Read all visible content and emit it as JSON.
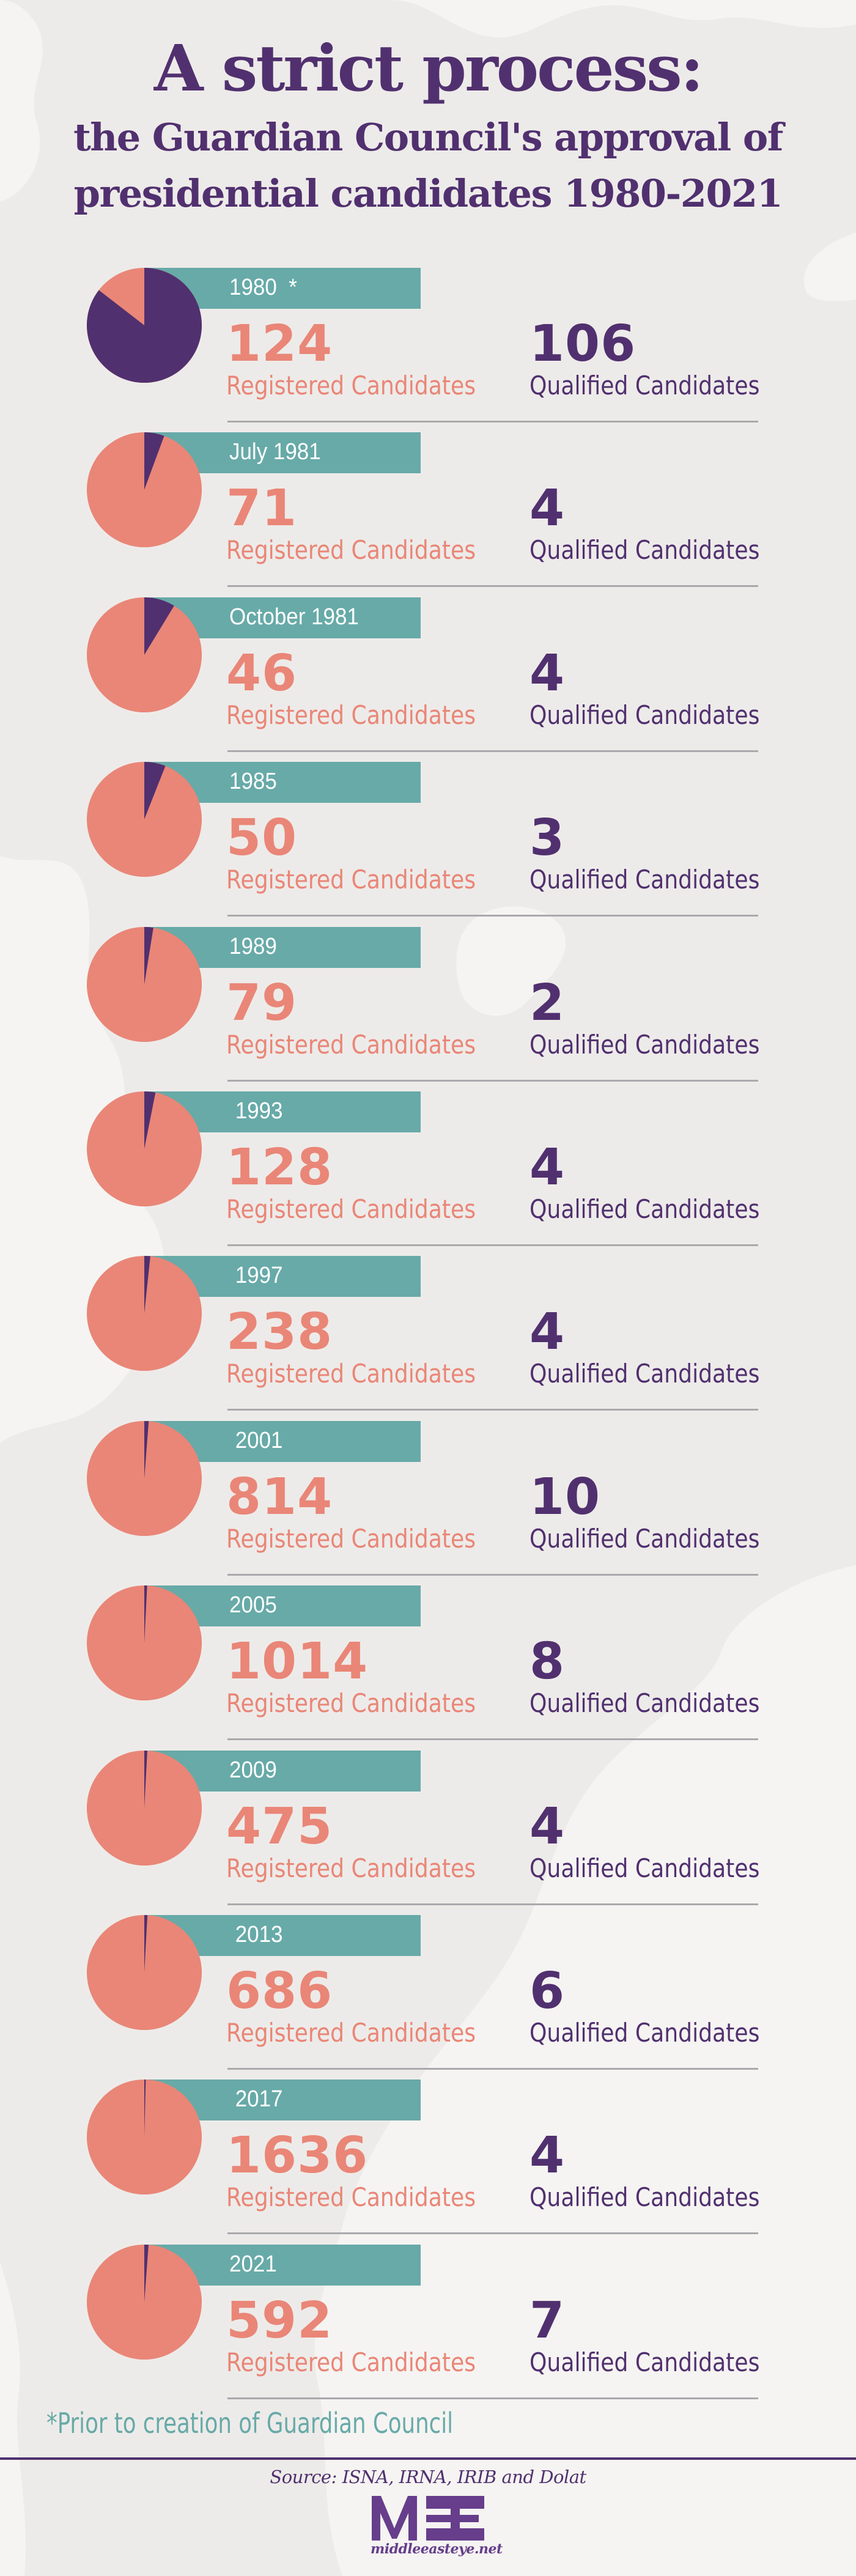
{
  "header": {
    "title": "A strict process:",
    "subtitle_line1": "the Guardian Council's approval of",
    "subtitle_line2": "presidential candidates 1980-2021"
  },
  "labels": {
    "registered": "Registered Candidates",
    "qualified": "Qualified Candidates"
  },
  "colors": {
    "background": "#edebe9",
    "registered": "#e98677",
    "qualified": "#51306f",
    "year_bar": "#67aaa8",
    "divider": "#a9a9ad"
  },
  "rows": [
    {
      "year": "1980  *",
      "registered": "124",
      "qualified": "106"
    },
    {
      "year": "July 1981",
      "registered": "71",
      "qualified": "4"
    },
    {
      "year": "October 1981",
      "registered": "46",
      "qualified": "4"
    },
    {
      "year": "1985",
      "registered": "50",
      "qualified": "3"
    },
    {
      "year": "1989",
      "registered": "79",
      "qualified": "2"
    },
    {
      "year": " 1993",
      "registered": "128",
      "qualified": "4"
    },
    {
      "year": " 1997",
      "registered": "238",
      "qualified": "4"
    },
    {
      "year": " 2001",
      "registered": "814",
      "qualified": "10"
    },
    {
      "year": "2005",
      "registered": "1014",
      "qualified": "8"
    },
    {
      "year": "2009",
      "registered": "475",
      "qualified": "4"
    },
    {
      "year": " 2013",
      "registered": "686",
      "qualified": "6"
    },
    {
      "year": " 2017",
      "registered": "1636",
      "qualified": "4"
    },
    {
      "year": "2021",
      "registered": "592",
      "qualified": "7"
    }
  ],
  "footnote": "*Prior to creation of Guardian Council",
  "footer": {
    "source": "Source:  ISNA, IRNA, IRIB and Dolat",
    "logo_text": "middleeasteye.net",
    "logo_alt": "MEE"
  },
  "chart_data": {
    "type": "pie",
    "title": "A strict process: the Guardian Council's approval of presidential candidates 1980-2021",
    "categories": [
      "1980",
      "July 1981",
      "October 1981",
      "1985",
      "1989",
      "1993",
      "1997",
      "2001",
      "2005",
      "2009",
      "2013",
      "2017",
      "2021"
    ],
    "series": [
      {
        "name": "Registered Candidates",
        "values": [
          124,
          71,
          46,
          50,
          79,
          128,
          238,
          814,
          1014,
          475,
          686,
          1636,
          592
        ]
      },
      {
        "name": "Qualified Candidates",
        "values": [
          106,
          4,
          4,
          3,
          2,
          4,
          4,
          10,
          8,
          4,
          6,
          4,
          7
        ]
      }
    ],
    "annotations": [
      "1980 *: Prior to creation of Guardian Council"
    ],
    "notes": "Each row is a pie: purple slice = qualified / registered, coral = remainder; slice starts at 12 o'clock clockwise.",
    "source": "ISNA, IRNA, IRIB and Dolat"
  }
}
